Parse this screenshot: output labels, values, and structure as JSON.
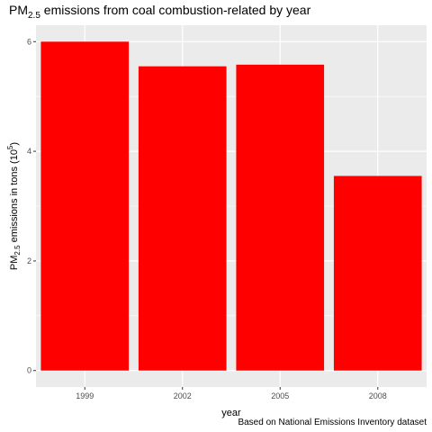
{
  "chart_data": {
    "type": "bar",
    "title": {
      "prefix": "PM",
      "subscript": "2.5",
      "suffix": " emissions from coal combustion-related by year"
    },
    "xlabel": "year",
    "ylabel": {
      "prefix": "PM",
      "subscript": "2.5",
      "middle": " emissions in tons (10",
      "superscript": "5",
      "suffix": ")"
    },
    "caption": "Based on National Emissions Inventory dataset",
    "categories": [
      "1999",
      "2002",
      "2005",
      "2008"
    ],
    "values": [
      6.0,
      5.55,
      5.58,
      3.55
    ],
    "ylim": [
      -0.3,
      6.3
    ],
    "yticks": [
      0,
      2,
      4,
      6
    ],
    "yminor": [
      1,
      3,
      5
    ],
    "grid": true,
    "colors": {
      "bar": "#ff0000",
      "panel": "#ebebeb",
      "grid": "#ffffff"
    }
  }
}
